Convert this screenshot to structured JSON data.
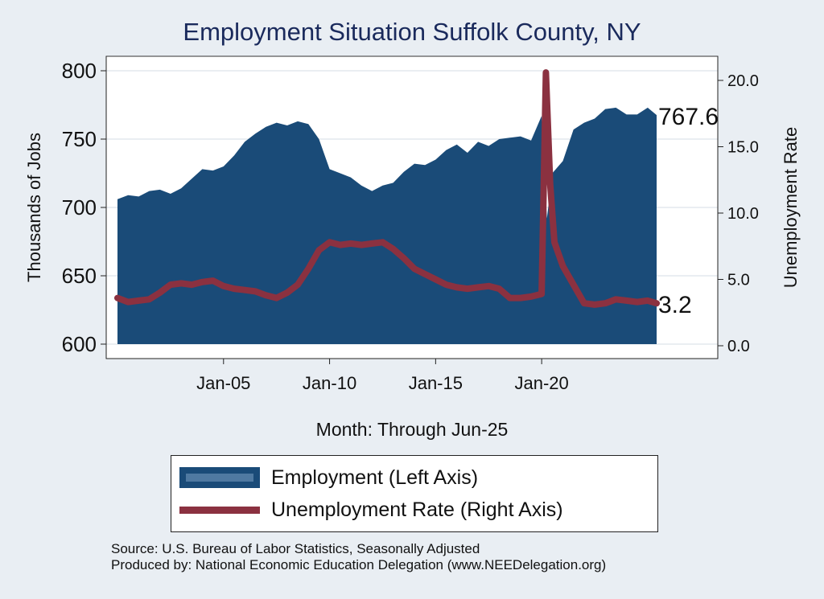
{
  "chart_data": {
    "type": "area+line",
    "title": "Employment Situation Suffolk  County, NY",
    "xlabel": "Month: Through Jun-25",
    "ylabel_left": "Thousands of Jobs",
    "ylabel_right": "Unemployment Rate",
    "x_range": [
      "2000-01",
      "2025-06"
    ],
    "x_ticks": [
      {
        "label": "Jan-05",
        "x": 2005.0
      },
      {
        "label": "Jan-10",
        "x": 2010.0
      },
      {
        "label": "Jan-15",
        "x": 2015.0
      },
      {
        "label": "Jan-20",
        "x": 2020.0
      }
    ],
    "ylim_left": [
      600,
      800
    ],
    "yticks_left": [
      600,
      650,
      700,
      750,
      800
    ],
    "ylim_right": [
      0.0,
      20.0
    ],
    "yticks_right": [
      "0.0",
      "5.0",
      "10.0",
      "15.0",
      "20.0"
    ],
    "grid": true,
    "legend_position": "bottom",
    "series": [
      {
        "name": "Employment (Left Axis)",
        "axis": "left",
        "kind": "area",
        "color": "#1a4b78",
        "end_label": "767.6",
        "points": [
          [
            2000.0,
            706
          ],
          [
            2000.5,
            709
          ],
          [
            2001.0,
            708
          ],
          [
            2001.5,
            712
          ],
          [
            2002.0,
            713
          ],
          [
            2002.5,
            710
          ],
          [
            2003.0,
            714
          ],
          [
            2003.5,
            721
          ],
          [
            2004.0,
            728
          ],
          [
            2004.5,
            727
          ],
          [
            2005.0,
            730
          ],
          [
            2005.5,
            738
          ],
          [
            2006.0,
            748
          ],
          [
            2006.5,
            754
          ],
          [
            2007.0,
            759
          ],
          [
            2007.5,
            762
          ],
          [
            2008.0,
            760
          ],
          [
            2008.5,
            763
          ],
          [
            2009.0,
            761
          ],
          [
            2009.5,
            750
          ],
          [
            2010.0,
            728
          ],
          [
            2010.5,
            725
          ],
          [
            2011.0,
            722
          ],
          [
            2011.5,
            716
          ],
          [
            2012.0,
            712
          ],
          [
            2012.5,
            716
          ],
          [
            2013.0,
            718
          ],
          [
            2013.5,
            726
          ],
          [
            2014.0,
            732
          ],
          [
            2014.5,
            731
          ],
          [
            2015.0,
            735
          ],
          [
            2015.5,
            742
          ],
          [
            2016.0,
            746
          ],
          [
            2016.5,
            740
          ],
          [
            2017.0,
            748
          ],
          [
            2017.5,
            745
          ],
          [
            2018.0,
            750
          ],
          [
            2018.5,
            751
          ],
          [
            2019.0,
            752
          ],
          [
            2019.5,
            749
          ],
          [
            2020.0,
            767
          ],
          [
            2020.25,
            692
          ],
          [
            2020.5,
            725
          ],
          [
            2021.0,
            734
          ],
          [
            2021.5,
            757
          ],
          [
            2022.0,
            762
          ],
          [
            2022.5,
            765
          ],
          [
            2023.0,
            772
          ],
          [
            2023.5,
            773
          ],
          [
            2024.0,
            768
          ],
          [
            2024.5,
            768
          ],
          [
            2025.0,
            773
          ],
          [
            2025.42,
            767.6
          ]
        ]
      },
      {
        "name": "Unemployment Rate (Right Axis)",
        "axis": "right",
        "kind": "line",
        "color": "#8b3140",
        "end_label": "3.2",
        "points": [
          [
            2000.0,
            3.6
          ],
          [
            2000.5,
            3.3
          ],
          [
            2001.0,
            3.4
          ],
          [
            2001.5,
            3.5
          ],
          [
            2002.0,
            4.0
          ],
          [
            2002.5,
            4.6
          ],
          [
            2003.0,
            4.7
          ],
          [
            2003.5,
            4.6
          ],
          [
            2004.0,
            4.8
          ],
          [
            2004.5,
            4.9
          ],
          [
            2005.0,
            4.5
          ],
          [
            2005.5,
            4.3
          ],
          [
            2006.0,
            4.2
          ],
          [
            2006.5,
            4.1
          ],
          [
            2007.0,
            3.8
          ],
          [
            2007.5,
            3.6
          ],
          [
            2008.0,
            4.0
          ],
          [
            2008.5,
            4.6
          ],
          [
            2009.0,
            5.8
          ],
          [
            2009.5,
            7.2
          ],
          [
            2010.0,
            7.8
          ],
          [
            2010.5,
            7.6
          ],
          [
            2011.0,
            7.7
          ],
          [
            2011.5,
            7.6
          ],
          [
            2012.0,
            7.7
          ],
          [
            2012.5,
            7.8
          ],
          [
            2013.0,
            7.3
          ],
          [
            2013.5,
            6.6
          ],
          [
            2014.0,
            5.8
          ],
          [
            2014.5,
            5.4
          ],
          [
            2015.0,
            5.0
          ],
          [
            2015.5,
            4.6
          ],
          [
            2016.0,
            4.4
          ],
          [
            2016.5,
            4.3
          ],
          [
            2017.0,
            4.4
          ],
          [
            2017.5,
            4.5
          ],
          [
            2018.0,
            4.3
          ],
          [
            2018.5,
            3.6
          ],
          [
            2019.0,
            3.6
          ],
          [
            2019.5,
            3.7
          ],
          [
            2020.0,
            3.9
          ],
          [
            2020.2,
            20.6
          ],
          [
            2020.4,
            12.2
          ],
          [
            2020.6,
            7.8
          ],
          [
            2021.0,
            6.0
          ],
          [
            2021.5,
            4.6
          ],
          [
            2022.0,
            3.2
          ],
          [
            2022.5,
            3.1
          ],
          [
            2023.0,
            3.2
          ],
          [
            2023.5,
            3.5
          ],
          [
            2024.0,
            3.4
          ],
          [
            2024.5,
            3.3
          ],
          [
            2025.0,
            3.4
          ],
          [
            2025.42,
            3.2
          ]
        ]
      }
    ]
  },
  "source_line": "Source: U.S. Bureau of Labor Statistics, Seasonally Adjusted",
  "produced_line": "Produced by: National Economic Education Delegation (www.NEEDelegation.org)"
}
